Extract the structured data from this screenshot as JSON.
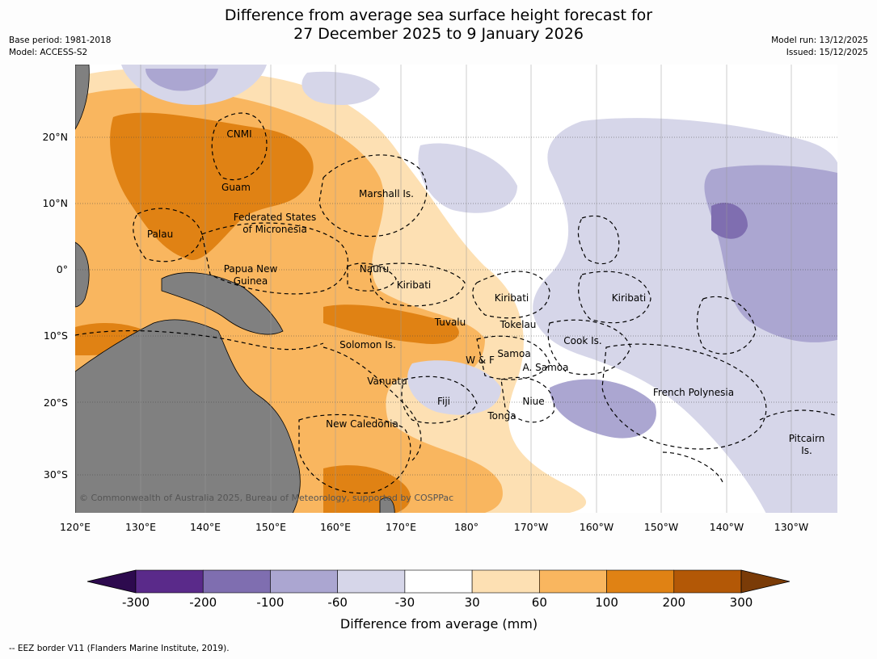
{
  "title": {
    "line1": "Difference from average sea surface height forecast for",
    "line2": "27 December 2025 to 9 January 2026"
  },
  "meta_left": {
    "line1": "Base period: 1981-2018",
    "line2": "Model: ACCESS-S2"
  },
  "meta_right": {
    "line1": "Model run: 13/12/2025",
    "line2": "Issued: 15/12/2025"
  },
  "lon_labels": [
    "120°E",
    "130°E",
    "140°E",
    "150°E",
    "160°E",
    "170°E",
    "180°",
    "170°W",
    "160°W",
    "150°W",
    "140°W",
    "130°W"
  ],
  "lat_labels": [
    "20°N",
    "10°N",
    "0°",
    "10°S",
    "20°S",
    "30°S"
  ],
  "regions": [
    "CNMI",
    "Guam",
    "Marshall Is.",
    "Federated States",
    "of Micronesia",
    "Palau",
    "Papua New",
    "Guinea",
    "Nauru",
    "Kiribati",
    "Kiribati",
    "Kiribati",
    "Tuvalu",
    "Tokelau",
    "Solomon Is.",
    "Cook Is.",
    "Samoa",
    "W & F",
    "A. Samoa",
    "Vanuatu",
    "Fiji",
    "Niue",
    "French Polynesia",
    "Tonga",
    "New Caledonia",
    "Pitcairn",
    "Is."
  ],
  "copyright": "© Commonwealth of Australia 2025, Bureau of Meteorology, supported by COSPPac",
  "colorbar": {
    "ticks": [
      "-300",
      "-200",
      "-100",
      "-60",
      "-30",
      "30",
      "60",
      "100",
      "200",
      "300"
    ],
    "colors": [
      "#2d0a4e",
      "#5a2a8a",
      "#7f6eb0",
      "#aba6d1",
      "#d6d6e9",
      "#ffffff",
      "#fde0b3",
      "#f9b65f",
      "#e08214",
      "#b35806",
      "#7a3b07"
    ],
    "label": "Difference from average (mm)"
  },
  "legend": {
    "eez": "-- EEZ border V11 (Flanders Marine Institute, 2019)."
  }
}
